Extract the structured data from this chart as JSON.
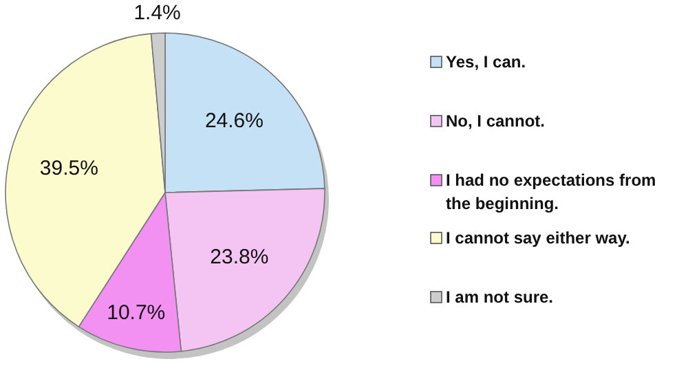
{
  "chart_data": {
    "type": "pie",
    "categories": [
      "Yes, I can.",
      "No, I cannot.",
      "I had no expectations from the beginning.",
      "I cannot say either way.",
      "I am not sure."
    ],
    "values": [
      24.6,
      23.8,
      10.7,
      39.5,
      1.4
    ],
    "colors": [
      "#c5e1f5",
      "#f4c4f2",
      "#f391f3",
      "#fbfbcd",
      "#cdcdcd"
    ],
    "value_labels": [
      "24.6%",
      "23.8%",
      "10.7%",
      "39.5%",
      "1.4%"
    ],
    "legend": "right"
  }
}
